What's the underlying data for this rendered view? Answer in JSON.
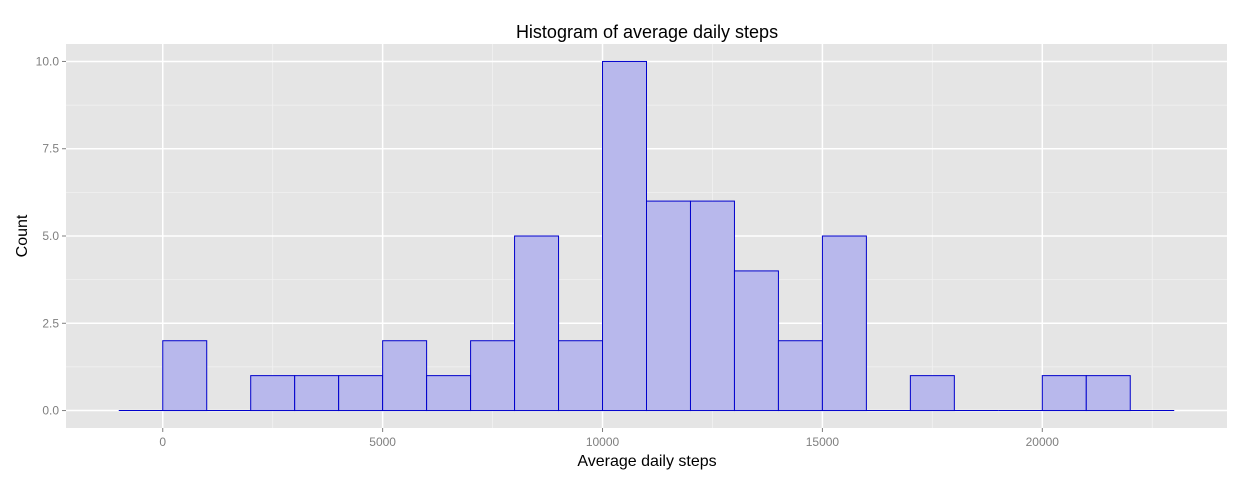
{
  "chart_data": {
    "type": "bar",
    "title": "Histogram of average daily steps",
    "xlabel": "Average daily steps",
    "ylabel": "Count",
    "bin_width": 1000,
    "bins": [
      {
        "start": -1000,
        "end": 0,
        "count": 0
      },
      {
        "start": 0,
        "end": 1000,
        "count": 2
      },
      {
        "start": 1000,
        "end": 2000,
        "count": 0
      },
      {
        "start": 2000,
        "end": 3000,
        "count": 1
      },
      {
        "start": 3000,
        "end": 4000,
        "count": 1
      },
      {
        "start": 4000,
        "end": 5000,
        "count": 1
      },
      {
        "start": 5000,
        "end": 6000,
        "count": 2
      },
      {
        "start": 6000,
        "end": 7000,
        "count": 1
      },
      {
        "start": 7000,
        "end": 8000,
        "count": 2
      },
      {
        "start": 8000,
        "end": 9000,
        "count": 5
      },
      {
        "start": 9000,
        "end": 10000,
        "count": 2
      },
      {
        "start": 10000,
        "end": 11000,
        "count": 10
      },
      {
        "start": 11000,
        "end": 12000,
        "count": 6
      },
      {
        "start": 12000,
        "end": 13000,
        "count": 6
      },
      {
        "start": 13000,
        "end": 14000,
        "count": 4
      },
      {
        "start": 14000,
        "end": 15000,
        "count": 2
      },
      {
        "start": 15000,
        "end": 16000,
        "count": 5
      },
      {
        "start": 16000,
        "end": 17000,
        "count": 0
      },
      {
        "start": 17000,
        "end": 18000,
        "count": 1
      },
      {
        "start": 18000,
        "end": 19000,
        "count": 0
      },
      {
        "start": 19000,
        "end": 20000,
        "count": 0
      },
      {
        "start": 20000,
        "end": 21000,
        "count": 1
      },
      {
        "start": 21000,
        "end": 22000,
        "count": 1
      },
      {
        "start": 22000,
        "end": 23000,
        "count": 0
      }
    ],
    "xlim": [
      -2200,
      24200
    ],
    "ylim": [
      -0.5,
      10.5
    ],
    "x_ticks": [
      0,
      5000,
      10000,
      15000,
      20000
    ],
    "x_tick_labels": [
      "0",
      "5000",
      "10000",
      "15000",
      "20000"
    ],
    "y_ticks": [
      0,
      2.5,
      5,
      7.5,
      10
    ],
    "y_tick_labels": [
      "0.0",
      "2.5",
      "5.0",
      "7.5",
      "10.0"
    ],
    "grid": true,
    "colors": {
      "panel": "#e5e5e5",
      "grid_major": "#ffffff",
      "grid_minor": "#f2f2f2",
      "bar_fill": "#b8b8ec",
      "bar_stroke": "#0000cc",
      "tick_mark": "#7f7f7f"
    }
  }
}
